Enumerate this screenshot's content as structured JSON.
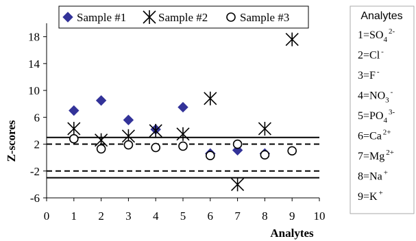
{
  "chart_data": {
    "type": "scatter",
    "title": "",
    "xlabel": "Analytes",
    "ylabel": "Z-scores",
    "xlim": [
      0,
      10
    ],
    "ylim": [
      -6,
      20
    ],
    "xticks": [
      0,
      1,
      2,
      3,
      4,
      5,
      6,
      7,
      8,
      9,
      10
    ],
    "yticks": [
      -6,
      -2,
      2,
      6,
      10,
      14,
      18
    ],
    "legend_position": "top",
    "reference_lines": [
      {
        "y": 3,
        "style": "solid"
      },
      {
        "y": -3,
        "style": "solid"
      },
      {
        "y": 2,
        "style": "dashed"
      },
      {
        "y": -2,
        "style": "dashed"
      }
    ],
    "series": [
      {
        "name": "Sample #1",
        "marker": "diamond",
        "color": "#333399",
        "x": [
          1,
          2,
          3,
          4,
          5,
          6,
          7,
          8
        ],
        "y": [
          7.0,
          8.5,
          5.6,
          4.2,
          7.5,
          0.6,
          1.1,
          0.6
        ]
      },
      {
        "name": "Sample #2",
        "marker": "asterisk",
        "color": "#000000",
        "x": [
          1,
          2,
          3,
          4,
          5,
          6,
          7,
          8,
          9
        ],
        "y": [
          4.3,
          2.6,
          3.2,
          4.0,
          3.5,
          8.8,
          -4.0,
          4.3,
          17.6
        ]
      },
      {
        "name": "Sample #3",
        "marker": "circle",
        "color": "#000000",
        "x": [
          1,
          2,
          3,
          4,
          5,
          6,
          7,
          8,
          9
        ],
        "y": [
          2.8,
          1.3,
          1.9,
          1.5,
          1.7,
          0.3,
          2.0,
          0.4,
          1.0
        ]
      }
    ]
  },
  "analytes_box": {
    "title": "Analytes",
    "items": [
      {
        "prefix": "1=SO",
        "sub": "4",
        "sup": "2-"
      },
      {
        "prefix": "2=Cl",
        "sub": "",
        "sup": "-"
      },
      {
        "prefix": "3=F",
        "sub": "",
        "sup": "-"
      },
      {
        "prefix": "4=NO",
        "sub": "3",
        "sup": "-"
      },
      {
        "prefix": "5=PO",
        "sub": "4",
        "sup": "3-"
      },
      {
        "prefix": "6=Ca",
        "sub": "",
        "sup": "2+"
      },
      {
        "prefix": "7=Mg",
        "sub": "",
        "sup": "2+"
      },
      {
        "prefix": "8=Na",
        "sub": "",
        "sup": "+"
      },
      {
        "prefix": "9=K",
        "sub": "",
        "sup": "+"
      }
    ]
  }
}
